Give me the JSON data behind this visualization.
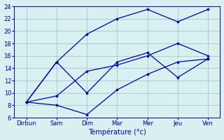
{
  "x_labels": [
    "Dirbun",
    "Sam",
    "Dim",
    "Mar",
    "Mer",
    "Jeu",
    "Ven"
  ],
  "x_positions": [
    0,
    1,
    2,
    3,
    4,
    5,
    6
  ],
  "series": [
    [
      8.5,
      8.0,
      6.5,
      10.5,
      13.0,
      15.0,
      15.5
    ],
    [
      8.5,
      9.5,
      13.5,
      14.5,
      16.0,
      18.0,
      16.0
    ],
    [
      8.5,
      15.0,
      19.5,
      22.0,
      23.5,
      21.5,
      23.5
    ],
    [
      8.5,
      15.0,
      10.0,
      15.0,
      16.5,
      12.5,
      15.5
    ]
  ],
  "line_color": "#0000AA",
  "marker": "*",
  "marker_size": 3,
  "background_color": "#d8f0f0",
  "grid_color": "#a0c8c8",
  "xlabel": "Température (°c)",
  "ylim": [
    6,
    24
  ],
  "yticks": [
    6,
    8,
    10,
    12,
    14,
    16,
    18,
    20,
    22,
    24
  ],
  "xlabel_fontsize": 7,
  "tick_fontsize": 6,
  "linewidth": 0.9
}
